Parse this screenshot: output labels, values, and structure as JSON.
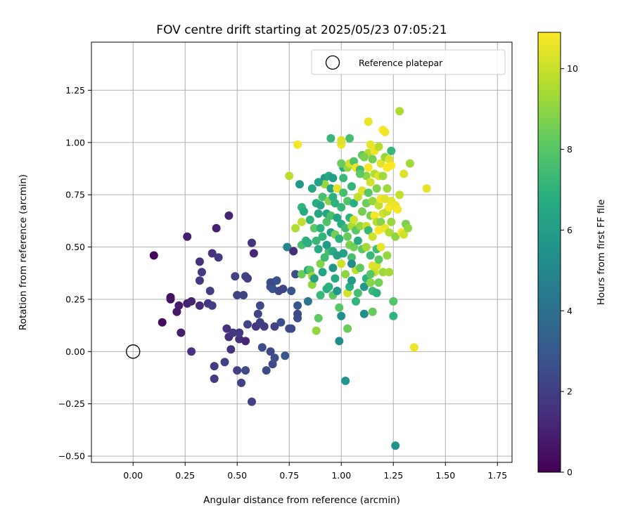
{
  "chart_data": {
    "type": "scatter",
    "title": "FOV centre drift starting at 2025/05/23 07:05:21",
    "xlabel": "Angular distance from reference (arcmin)",
    "ylabel": "Rotation from reference (arcmin)",
    "xlim": [
      -0.2,
      1.82
    ],
    "ylim": [
      -0.53,
      1.48
    ],
    "xticks": [
      "0.00",
      "0.25",
      "0.50",
      "0.75",
      "1.00",
      "1.25",
      "1.50",
      "1.75"
    ],
    "xtick_values": [
      0,
      0.25,
      0.5,
      0.75,
      1.0,
      1.25,
      1.5,
      1.75
    ],
    "yticks": [
      "−0.50",
      "−0.25",
      "0.00",
      "0.25",
      "0.50",
      "0.75",
      "1.00",
      "1.25"
    ],
    "ytick_values": [
      -0.5,
      -0.25,
      0,
      0.25,
      0.5,
      0.75,
      1.0,
      1.25
    ],
    "grid": true,
    "colormap": "viridis",
    "colorbar": {
      "label": "Hours from first FF file",
      "range": [
        0,
        10.9
      ],
      "ticks": [
        "0",
        "2",
        "4",
        "6",
        "8",
        "10"
      ],
      "tick_values": [
        0,
        2,
        4,
        6,
        8,
        10
      ]
    },
    "legend": {
      "placement": "top-right",
      "entries": [
        {
          "label": "Reference platepar",
          "marker": "open-circle"
        }
      ]
    },
    "reference_point": {
      "x": 0.0,
      "y": 0.0,
      "label": "Reference platepar"
    },
    "point_fields": [
      "x",
      "y",
      "hours"
    ],
    "points": [
      [
        0.1,
        0.46,
        0.2
      ],
      [
        0.14,
        0.14,
        0.3
      ],
      [
        0.18,
        0.26,
        0.5
      ],
      [
        0.18,
        0.25,
        0.6
      ],
      [
        0.21,
        0.19,
        0.7
      ],
      [
        0.22,
        0.22,
        0.8
      ],
      [
        0.23,
        0.09,
        0.9
      ],
      [
        0.26,
        0.55,
        0.9
      ],
      [
        0.26,
        0.23,
        1.0
      ],
      [
        0.28,
        0.24,
        1.1
      ],
      [
        0.28,
        0.0,
        1.6
      ],
      [
        0.32,
        0.43,
        1.5
      ],
      [
        0.32,
        0.34,
        1.8
      ],
      [
        0.33,
        0.38,
        1.8
      ],
      [
        0.32,
        0.22,
        1.3
      ],
      [
        0.36,
        0.23,
        1.7
      ],
      [
        0.37,
        0.29,
        2.0
      ],
      [
        0.38,
        0.47,
        1.6
      ],
      [
        0.38,
        0.22,
        1.9
      ],
      [
        0.39,
        -0.07,
        2.0
      ],
      [
        0.39,
        -0.13,
        1.9
      ],
      [
        0.4,
        0.59,
        1.0
      ],
      [
        0.41,
        0.45,
        1.8
      ],
      [
        0.44,
        -0.05,
        2.1
      ],
      [
        0.45,
        0.11,
        1.5
      ],
      [
        0.46,
        0.65,
        1.1
      ],
      [
        0.46,
        0.07,
        1.4
      ],
      [
        0.47,
        0.01,
        1.6
      ],
      [
        0.48,
        0.09,
        1.7
      ],
      [
        0.49,
        0.36,
        2.1
      ],
      [
        0.5,
        0.27,
        2.1
      ],
      [
        0.5,
        -0.09,
        2.2
      ],
      [
        0.51,
        0.06,
        1.5
      ],
      [
        0.51,
        0.09,
        1.8
      ],
      [
        0.52,
        -0.15,
        2.1
      ],
      [
        0.53,
        0.27,
        2.2
      ],
      [
        0.54,
        0.36,
        2.2
      ],
      [
        0.54,
        0.05,
        1.2
      ],
      [
        0.54,
        -0.09,
        2.5
      ],
      [
        0.55,
        0.35,
        2.0
      ],
      [
        0.55,
        0.13,
        2.2
      ],
      [
        0.57,
        0.52,
        1.6
      ],
      [
        0.57,
        -0.24,
        2.1
      ],
      [
        0.58,
        0.47,
        1.2
      ],
      [
        0.59,
        0.12,
        1.7
      ],
      [
        0.6,
        0.18,
        2.3
      ],
      [
        0.61,
        0.22,
        2.4
      ],
      [
        0.61,
        0.14,
        2.0
      ],
      [
        0.62,
        0.02,
        2.6
      ],
      [
        0.63,
        0.12,
        1.9
      ],
      [
        0.64,
        -0.09,
        2.5
      ],
      [
        0.66,
        0.0,
        2.4
      ],
      [
        0.66,
        0.33,
        2.7
      ],
      [
        0.66,
        0.31,
        2.6
      ],
      [
        0.67,
        0.33,
        2.4
      ],
      [
        0.67,
        0.3,
        2.8
      ],
      [
        0.67,
        -0.06,
        2.5
      ],
      [
        0.68,
        -0.03,
        2.6
      ],
      [
        0.68,
        0.12,
        2.1
      ],
      [
        0.69,
        0.34,
        2.7
      ],
      [
        0.7,
        0.29,
        2.4
      ],
      [
        0.71,
        0.14,
        2.6
      ],
      [
        0.72,
        0.3,
        2.3
      ],
      [
        0.73,
        -0.02,
        2.9
      ],
      [
        0.74,
        0.5,
        5.0
      ],
      [
        0.75,
        0.11,
        2.6
      ],
      [
        0.76,
        0.11,
        2.4
      ],
      [
        0.76,
        0.29,
        2.9
      ],
      [
        0.77,
        0.48,
        1.4
      ],
      [
        0.78,
        0.37,
        2.6
      ],
      [
        0.78,
        0.59,
        9.6
      ],
      [
        0.79,
        0.16,
        2.7
      ],
      [
        0.79,
        0.22,
        3.0
      ],
      [
        0.79,
        0.18,
        2.4
      ],
      [
        0.8,
        0.8,
        5.8
      ],
      [
        0.81,
        0.69,
        7.1
      ],
      [
        0.81,
        0.51,
        7.6
      ],
      [
        0.81,
        0.62,
        9.9
      ],
      [
        0.81,
        0.37,
        8.4
      ],
      [
        0.82,
        0.67,
        6.7
      ],
      [
        0.83,
        0.53,
        6.9
      ],
      [
        0.84,
        0.24,
        4.3
      ],
      [
        0.84,
        0.52,
        6.8
      ],
      [
        0.84,
        0.39,
        6.4
      ],
      [
        0.85,
        0.63,
        7.0
      ],
      [
        0.85,
        0.39,
        8.0
      ],
      [
        0.86,
        0.36,
        9.4
      ],
      [
        0.86,
        0.32,
        9.0
      ],
      [
        0.86,
        0.78,
        6.4
      ],
      [
        0.87,
        0.35,
        6.1
      ],
      [
        0.87,
        0.59,
        8.1
      ],
      [
        0.88,
        0.53,
        7.2
      ],
      [
        0.88,
        0.71,
        6.8
      ],
      [
        0.88,
        0.1,
        9.1
      ],
      [
        0.89,
        0.16,
        8.2
      ],
      [
        0.89,
        0.49,
        6.6
      ],
      [
        0.89,
        0.66,
        6.5
      ],
      [
        0.9,
        0.59,
        6.9
      ],
      [
        0.9,
        0.42,
        8.8
      ],
      [
        0.9,
        0.27,
        7.3
      ],
      [
        0.91,
        0.74,
        7.6
      ],
      [
        0.91,
        0.55,
        7.1
      ],
      [
        0.91,
        0.38,
        6.3
      ],
      [
        0.92,
        0.83,
        5.8
      ],
      [
        0.92,
        0.45,
        7.4
      ],
      [
        0.92,
        0.8,
        9.2
      ],
      [
        0.93,
        0.66,
        6.5
      ],
      [
        0.93,
        0.62,
        7.8
      ],
      [
        0.93,
        0.3,
        6.8
      ],
      [
        0.94,
        0.84,
        6.6
      ],
      [
        0.94,
        0.48,
        7.6
      ],
      [
        0.94,
        0.72,
        8.9
      ],
      [
        0.94,
        0.31,
        6.9
      ],
      [
        0.95,
        0.57,
        6.1
      ],
      [
        0.95,
        1.02,
        7.2
      ],
      [
        0.95,
        0.78,
        6.2
      ],
      [
        0.95,
        0.65,
        7.7
      ],
      [
        0.96,
        0.48,
        6.7
      ],
      [
        0.96,
        0.4,
        5.7
      ],
      [
        0.96,
        0.27,
        8.1
      ],
      [
        0.96,
        0.83,
        6.0
      ],
      [
        0.97,
        0.71,
        6.9
      ],
      [
        0.97,
        0.56,
        8.5
      ],
      [
        0.97,
        0.35,
        6.6
      ],
      [
        0.98,
        0.64,
        6.3
      ],
      [
        0.98,
        0.29,
        5.7
      ],
      [
        0.98,
        0.78,
        10.4
      ],
      [
        0.99,
        0.54,
        6.9
      ],
      [
        0.99,
        0.21,
        8.0
      ],
      [
        0.99,
        0.05,
        5.3
      ],
      [
        1.0,
        0.99,
        10.6
      ],
      [
        1.0,
        1.01,
        10.3
      ],
      [
        1.0,
        0.69,
        7.2
      ],
      [
        1.0,
        0.61,
        6.7
      ],
      [
        1.0,
        0.42,
        10.1
      ],
      [
        1.0,
        0.17,
        5.4
      ],
      [
        1.01,
        0.88,
        6.7
      ],
      [
        1.01,
        0.76,
        7.6
      ],
      [
        1.01,
        0.47,
        6.2
      ],
      [
        1.02,
        0.59,
        7.4
      ],
      [
        1.02,
        0.37,
        9.0
      ],
      [
        1.02,
        -0.14,
        5.6
      ],
      [
        1.03,
        0.88,
        9.1
      ],
      [
        1.03,
        0.72,
        7.9
      ],
      [
        1.03,
        0.55,
        8.3
      ],
      [
        1.03,
        0.28,
        10.2
      ],
      [
        1.03,
        0.11,
        8.4
      ],
      [
        1.04,
        1.02,
        7.6
      ],
      [
        1.04,
        0.9,
        10.2
      ],
      [
        1.04,
        0.64,
        7.0
      ],
      [
        1.04,
        0.51,
        8.7
      ],
      [
        1.04,
        0.31,
        6.8
      ],
      [
        1.05,
        0.79,
        7.1
      ],
      [
        1.05,
        0.45,
        7.6
      ],
      [
        1.05,
        0.6,
        9.5
      ],
      [
        1.05,
        0.34,
        5.9
      ],
      [
        1.06,
        0.91,
        7.8
      ],
      [
        1.06,
        0.71,
        6.8
      ],
      [
        1.06,
        0.63,
        10.1
      ],
      [
        1.06,
        0.5,
        8.5
      ],
      [
        1.07,
        0.58,
        8.0
      ],
      [
        1.07,
        0.39,
        9.8
      ],
      [
        1.07,
        0.88,
        10.6
      ],
      [
        1.08,
        0.74,
        9.9
      ],
      [
        1.08,
        0.53,
        6.6
      ],
      [
        1.08,
        0.28,
        7.6
      ],
      [
        1.09,
        0.87,
        7.4
      ],
      [
        1.09,
        0.6,
        9.1
      ],
      [
        1.09,
        0.4,
        8.2
      ],
      [
        1.1,
        0.94,
        8.2
      ],
      [
        1.1,
        0.77,
        10.4
      ],
      [
        1.1,
        0.67,
        8.6
      ],
      [
        1.1,
        0.49,
        8.1
      ],
      [
        1.11,
        0.31,
        5.8
      ],
      [
        1.11,
        0.18,
        5.3
      ],
      [
        1.12,
        0.84,
        9.0
      ],
      [
        1.12,
        0.71,
        8.4
      ],
      [
        1.12,
        0.6,
        10.0
      ],
      [
        1.12,
        0.5,
        9.4
      ],
      [
        1.12,
        0.35,
        6.9
      ],
      [
        1.13,
        1.1,
        10.6
      ],
      [
        1.13,
        0.95,
        9.7
      ],
      [
        1.13,
        0.88,
        10.8
      ],
      [
        1.13,
        0.76,
        8.0
      ],
      [
        1.13,
        0.58,
        7.2
      ],
      [
        1.14,
        0.99,
        10.5
      ],
      [
        1.14,
        0.81,
        10.2
      ],
      [
        1.14,
        0.65,
        8.6
      ],
      [
        1.14,
        0.46,
        7.3
      ],
      [
        1.14,
        0.33,
        8.9
      ],
      [
        1.15,
        0.92,
        8.6
      ],
      [
        1.15,
        0.72,
        9.1
      ],
      [
        1.15,
        0.55,
        10.1
      ],
      [
        1.15,
        0.41,
        10.4
      ],
      [
        1.15,
        0.29,
        7.4
      ],
      [
        1.15,
        0.19,
        8.3
      ],
      [
        1.16,
        0.96,
        10.7
      ],
      [
        1.16,
        0.85,
        9.6
      ],
      [
        1.16,
        0.65,
        10.8
      ],
      [
        1.16,
        0.38,
        10.0
      ],
      [
        1.17,
        0.78,
        8.8
      ],
      [
        1.17,
        0.62,
        9.7
      ],
      [
        1.17,
        0.49,
        7.5
      ],
      [
        1.17,
        0.41,
        10.3
      ],
      [
        1.17,
        0.28,
        6.9
      ],
      [
        1.18,
        0.98,
        9.7
      ],
      [
        1.18,
        0.84,
        10.3
      ],
      [
        1.18,
        0.7,
        9.9
      ],
      [
        1.18,
        0.58,
        10.9
      ],
      [
        1.18,
        0.33,
        8.5
      ],
      [
        1.19,
        0.9,
        10.4
      ],
      [
        1.19,
        0.73,
        10.7
      ],
      [
        1.19,
        0.62,
        8.9
      ],
      [
        1.19,
        0.5,
        10.5
      ],
      [
        1.2,
        1.06,
        10.8
      ],
      [
        1.2,
        0.84,
        9.3
      ],
      [
        1.2,
        0.66,
        10.2
      ],
      [
        1.2,
        0.38,
        9.3
      ],
      [
        1.21,
        1.05,
        10.7
      ],
      [
        1.21,
        0.93,
        9.2
      ],
      [
        1.21,
        0.73,
        10.4
      ],
      [
        1.21,
        0.59,
        10.6
      ],
      [
        1.22,
        0.88,
        10.9
      ],
      [
        1.22,
        0.78,
        9.3
      ],
      [
        1.22,
        0.67,
        9.8
      ],
      [
        1.22,
        0.46,
        9.1
      ],
      [
        1.23,
        0.92,
        10.3
      ],
      [
        1.23,
        0.69,
        10.8
      ],
      [
        1.23,
        0.57,
        9.6
      ],
      [
        1.23,
        0.38,
        9.4
      ],
      [
        1.24,
        0.96,
        7.2
      ],
      [
        1.24,
        0.89,
        10.9
      ],
      [
        1.24,
        0.72,
        10.5
      ],
      [
        1.24,
        0.62,
        9.2
      ],
      [
        1.25,
        0.17,
        7.0
      ],
      [
        1.25,
        0.24,
        7.9
      ],
      [
        1.26,
        0.7,
        10.6
      ],
      [
        1.26,
        0.55,
        9.0
      ],
      [
        1.26,
        -0.45,
        5.5
      ],
      [
        1.27,
        0.68,
        10.8
      ],
      [
        1.28,
        1.15,
        9.5
      ],
      [
        1.28,
        0.75,
        9.9
      ],
      [
        1.29,
        0.57,
        10.8
      ],
      [
        1.3,
        0.85,
        10.3
      ],
      [
        1.3,
        0.56,
        10.1
      ],
      [
        1.31,
        0.61,
        8.7
      ],
      [
        1.32,
        0.59,
        9.1
      ],
      [
        1.33,
        0.9,
        9.3
      ],
      [
        1.35,
        0.02,
        10.6
      ],
      [
        1.41,
        0.78,
        10.5
      ],
      [
        0.79,
        0.99,
        10.8
      ],
      [
        0.75,
        0.84,
        9.8
      ],
      [
        0.89,
        0.81,
        6.2
      ],
      [
        0.96,
        0.74,
        6.9
      ],
      [
        1.01,
        0.83,
        7.3
      ],
      [
        1.05,
        0.42,
        5.2
      ],
      [
        0.93,
        0.51,
        5.9
      ],
      [
        0.9,
        0.7,
        6.4
      ],
      [
        1.09,
        0.85,
        8.1
      ],
      [
        1.0,
        0.9,
        8.4
      ],
      [
        1.11,
        0.93,
        8.7
      ],
      [
        0.98,
        0.46,
        6.1
      ],
      [
        1.18,
        0.44,
        8.2
      ],
      [
        1.07,
        0.24,
        7.1
      ],
      [
        1.14,
        0.37,
        8.0
      ]
    ]
  }
}
